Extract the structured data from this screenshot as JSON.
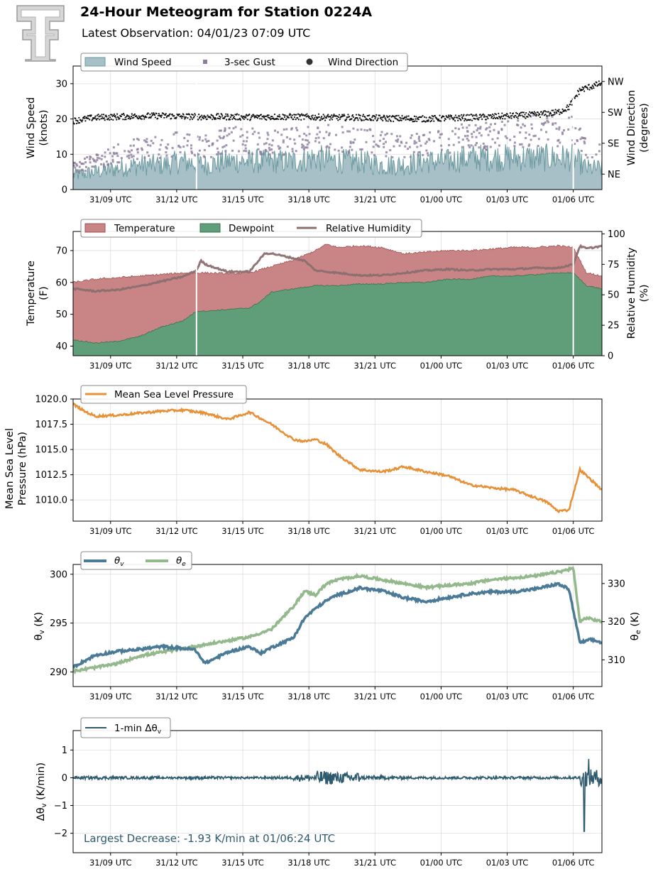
{
  "header": {
    "title": "24-Hour Meteogram for Station 0224A",
    "subtitle": "Latest Observation: 04/01/23 07:09 UTC"
  },
  "x_axis": {
    "tick_labels": [
      "31/09 UTC",
      "31/12 UTC",
      "31/15 UTC",
      "31/18 UTC",
      "31/21 UTC",
      "01/00 UTC",
      "01/03 UTC",
      "01/06 UTC"
    ],
    "tick_hours": [
      1.7,
      4.7,
      7.7,
      10.7,
      13.7,
      16.7,
      19.7,
      22.7
    ],
    "range_hours": [
      0,
      24
    ]
  },
  "colors": {
    "wind_speed": "#a7bfc6",
    "wind_speed_line": "#6b9aa0",
    "gust": "#8c7d9c",
    "wind_dir": "#111111",
    "temperature": "#c98585",
    "temperature_line": "#a05050",
    "dewpoint": "#5f9e78",
    "dewpoint_line": "#3f7050",
    "rh": "#8b6e70",
    "pressure": "#e69138",
    "theta_v": "#4a7a96",
    "theta_e": "#93b88c",
    "dthv": "#2e5a6e",
    "annotation": "#2e5a6e"
  },
  "chart_data": [
    {
      "type": "area",
      "panel": "wind",
      "ylabel": "Wind Speed\n(knots)",
      "ylim": [
        0,
        35
      ],
      "yticks": [
        0,
        10,
        20,
        30
      ],
      "y2label": "Wind Direction\n(degrees)",
      "y2ticks": [
        "NE",
        "SE",
        "SW",
        "NW"
      ],
      "y2_values_deg": [
        45,
        135,
        225,
        315
      ],
      "legend": [
        "Wind Speed",
        "3-sec Gust",
        "Wind Direction"
      ],
      "series": [
        {
          "name": "Wind Speed",
          "x": [
            0,
            1,
            2,
            3,
            4,
            5,
            6,
            7,
            8,
            9,
            10,
            11,
            12,
            13,
            14,
            15,
            16,
            17,
            18,
            19,
            20,
            21,
            22,
            22.7,
            23.3,
            24
          ],
          "values": [
            4,
            5,
            6,
            7,
            7,
            8,
            7,
            8,
            8,
            8,
            8,
            9,
            8,
            8,
            7,
            7,
            8,
            8,
            9,
            9,
            9,
            9,
            9,
            9,
            6,
            6
          ]
        },
        {
          "name": "3-sec Gust",
          "x": [
            0,
            1,
            2,
            3,
            4,
            5,
            6,
            7,
            8,
            9,
            10,
            11,
            12,
            13,
            14,
            15,
            16,
            17,
            18,
            19,
            20,
            21,
            22,
            22.7,
            23.3,
            24
          ],
          "values": [
            6,
            8,
            10,
            12,
            12,
            13,
            12,
            14,
            14,
            13,
            14,
            15,
            14,
            14,
            13,
            12,
            13,
            14,
            15,
            15,
            16,
            17,
            16,
            17,
            11,
            10
          ]
        },
        {
          "name": "Wind Direction",
          "x": [
            0,
            1,
            2,
            3,
            4,
            5,
            6,
            7,
            8,
            9,
            10,
            11,
            12,
            13,
            14,
            15,
            16,
            17,
            18,
            19,
            20,
            21,
            22,
            22.5,
            23,
            23.5,
            24
          ],
          "values_deg": [
            200,
            210,
            212,
            214,
            215,
            213,
            212,
            212,
            211,
            212,
            212,
            211,
            210,
            210,
            208,
            207,
            206,
            208,
            210,
            212,
            215,
            218,
            225,
            240,
            290,
            300,
            310
          ]
        }
      ],
      "gaps_hours": [
        5.6,
        22.7
      ]
    },
    {
      "type": "area",
      "panel": "temperature",
      "ylabel": "Temperature\n(F)",
      "ylim": [
        37,
        76
      ],
      "yticks": [
        40,
        50,
        60,
        70
      ],
      "y2label": "Relative Humidity\n(%)",
      "y2lim": [
        0,
        102
      ],
      "y2ticks": [
        0,
        25,
        50,
        75,
        100
      ],
      "legend": [
        "Temperature",
        "Dewpoint",
        "Relative Humidity"
      ],
      "series": [
        {
          "name": "Temperature",
          "x": [
            0,
            1,
            2,
            3,
            4,
            5,
            5.6,
            6,
            7,
            8,
            9,
            10,
            11,
            11.5,
            12,
            13,
            14,
            15,
            16,
            17,
            18,
            19,
            20,
            21,
            22,
            22.7,
            23.3,
            24
          ],
          "values": [
            60,
            61,
            61.5,
            62,
            62.5,
            63,
            63,
            63,
            62.8,
            63,
            65,
            67,
            70,
            72,
            71,
            71.5,
            71,
            69,
            69.5,
            70,
            70,
            70.5,
            71,
            71,
            71.5,
            71,
            63,
            62
          ]
        },
        {
          "name": "Dewpoint",
          "x": [
            0,
            1,
            2,
            3,
            4,
            5,
            5.6,
            6,
            7,
            8,
            8.5,
            9,
            10,
            11,
            12,
            13,
            14,
            15,
            16,
            17,
            18,
            19,
            20,
            21,
            22,
            22.7,
            23.3,
            24
          ],
          "values": [
            42,
            41,
            41.5,
            43,
            46,
            48,
            51,
            51,
            51.5,
            52,
            54,
            57,
            58,
            59,
            59,
            59.5,
            59.5,
            60,
            60,
            61,
            61,
            62,
            62,
            62.5,
            63,
            63,
            59,
            58
          ]
        },
        {
          "name": "Relative Humidity",
          "axis": "right",
          "x": [
            0,
            1,
            2,
            3,
            4,
            5,
            5.6,
            5.8,
            6,
            7,
            8,
            8.7,
            9,
            10,
            10.5,
            11,
            12,
            13,
            14,
            15,
            16,
            17,
            18,
            19,
            20,
            21,
            22,
            22.7,
            23,
            23.3,
            24
          ],
          "values": [
            55,
            53,
            54,
            57,
            61,
            65,
            70,
            78,
            75,
            69,
            69,
            84,
            84,
            80,
            78,
            70,
            68,
            66,
            66,
            68,
            70,
            71,
            70,
            71,
            71,
            72,
            72,
            75,
            90,
            88,
            90
          ]
        }
      ],
      "gaps_hours": [
        5.6,
        22.7
      ]
    },
    {
      "type": "line",
      "panel": "pressure",
      "ylabel": "Mean Sea Level\nPressure (hPa)",
      "ylim": [
        1007.9,
        1020.0
      ],
      "yticks": [
        1010.0,
        1012.5,
        1015.0,
        1017.5,
        1020.0
      ],
      "legend": [
        "Mean Sea Level Pressure"
      ],
      "series": [
        {
          "name": "Mean Sea Level Pressure",
          "x": [
            0,
            0.5,
            1,
            2,
            3,
            4,
            5,
            6,
            7,
            7.5,
            8,
            9,
            10,
            10.5,
            11,
            11.5,
            12,
            13,
            14,
            14.5,
            15,
            16,
            17,
            18,
            19,
            20,
            21,
            21.5,
            22,
            22.5,
            23,
            24
          ],
          "values": [
            1019.5,
            1018.8,
            1018.3,
            1018.4,
            1018.6,
            1018.8,
            1018.9,
            1018.6,
            1018.0,
            1018.3,
            1018.7,
            1017.5,
            1016.0,
            1015.8,
            1016.0,
            1015.5,
            1014.5,
            1013.0,
            1012.8,
            1013.0,
            1013.3,
            1012.8,
            1012.4,
            1011.5,
            1011.2,
            1011.0,
            1010.2,
            1009.8,
            1008.9,
            1009.0,
            1013.0,
            1011.0
          ]
        }
      ]
    },
    {
      "type": "line",
      "panel": "theta",
      "ylabel": "θv (K)",
      "ylim": [
        288.5,
        301
      ],
      "yticks": [
        290,
        295,
        300
      ],
      "y2label": "θe (K)",
      "y2lim": [
        303,
        335
      ],
      "y2ticks": [
        310,
        320,
        330
      ],
      "legend": [
        "θv",
        "θe"
      ],
      "series": [
        {
          "name": "θv",
          "x": [
            0,
            1,
            2,
            3,
            4,
            5,
            5.5,
            6,
            7,
            8,
            8.5,
            9,
            10,
            10.5,
            11,
            11.5,
            12,
            12.5,
            13,
            14,
            15,
            16,
            17,
            18,
            19,
            20,
            21,
            22,
            22.5,
            23,
            23.5,
            24
          ],
          "values": [
            290.5,
            291.7,
            292.1,
            292.3,
            292.6,
            292.4,
            292.3,
            290.9,
            292.0,
            292.6,
            291.9,
            292.5,
            293.5,
            295.5,
            296.5,
            297.3,
            297.9,
            298.2,
            298.6,
            298.3,
            297.6,
            297.2,
            297.6,
            298.0,
            298.2,
            298.2,
            298.5,
            299.0,
            298.5,
            293.0,
            293.3,
            293.0
          ]
        },
        {
          "name": "θe",
          "axis": "right",
          "x": [
            0,
            1,
            2,
            3,
            4,
            5,
            6,
            7,
            8,
            9,
            10,
            10.5,
            11,
            11.5,
            12,
            13,
            14,
            15,
            16,
            17,
            18,
            19,
            20,
            21,
            22,
            22.7,
            23,
            23.3,
            24
          ],
          "values": [
            307,
            308,
            309,
            311,
            312,
            313,
            314,
            315,
            316,
            318,
            324,
            328,
            327,
            330,
            331,
            332,
            331,
            330,
            329,
            329.5,
            330,
            331,
            331.5,
            332,
            333,
            334,
            320,
            321,
            320
          ]
        }
      ]
    },
    {
      "type": "line",
      "panel": "dthv",
      "ylabel": "Δθv (K/min)",
      "ylim": [
        -2.7,
        1.7
      ],
      "yticks": [
        -2,
        -1,
        0,
        1
      ],
      "legend": [
        "1-min Δθv"
      ],
      "series": [
        {
          "name": "1-min Δθv",
          "noise_amplitude_by_hour": [
            0.06,
            0.06,
            0.05,
            0.05,
            0.04,
            0.06,
            0.05,
            0.04,
            0.04,
            0.05,
            0.12,
            0.25,
            0.2,
            0.08,
            0.06,
            0.05,
            0.05,
            0.05,
            0.05,
            0.05,
            0.05,
            0.05,
            0.05,
            0.3,
            0.05
          ],
          "min_value": -1.93,
          "min_time": "01/06:24 UTC",
          "min_hour": 23.2,
          "max_value": 0.68,
          "max_hour": 23.4
        }
      ],
      "annotation": "Largest Decrease: -1.93 K/min at 01/06:24 UTC"
    }
  ]
}
